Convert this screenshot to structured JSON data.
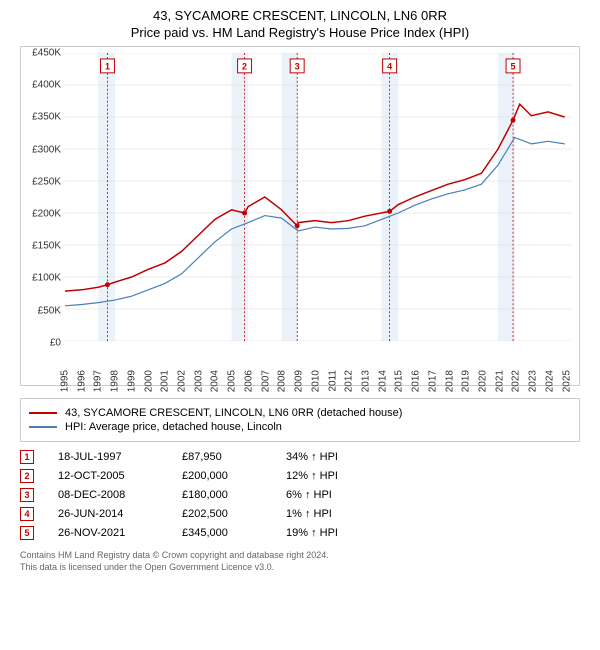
{
  "title_line1": "43, SYCAMORE CRESCENT, LINCOLN, LN6 0RR",
  "title_line2": "Price paid vs. HM Land Registry's House Price Index (HPI)",
  "chart": {
    "type": "line",
    "background_color": "#ffffff",
    "border_color": "#cccccc",
    "grid_color": "#d8d8d8",
    "shade_color": "#d7e6f4",
    "shade_opacity": 0.5,
    "xlim": [
      1995,
      2025.5
    ],
    "ylim": [
      0,
      450000
    ],
    "ytick_step": 50000,
    "ytick_prefix": "£",
    "ytick_suffix": "K",
    "x_ticks": [
      1995,
      1996,
      1997,
      1998,
      1999,
      2000,
      2001,
      2002,
      2003,
      2004,
      2005,
      2006,
      2007,
      2008,
      2009,
      2010,
      2011,
      2012,
      2013,
      2014,
      2015,
      2016,
      2017,
      2018,
      2019,
      2020,
      2021,
      2022,
      2023,
      2024,
      2025
    ],
    "shaded_years": [
      1997,
      2005,
      2008,
      2014,
      2021
    ],
    "series": [
      {
        "id": "property",
        "label": "43, SYCAMORE CRESCENT, LINCOLN, LN6 0RR (detached house)",
        "color": "#c00000",
        "width": 1.5,
        "data": [
          [
            1995,
            78000
          ],
          [
            1996,
            80000
          ],
          [
            1997,
            84000
          ],
          [
            1997.55,
            87950
          ],
          [
            1998,
            92000
          ],
          [
            1999,
            100000
          ],
          [
            2000,
            112000
          ],
          [
            2001,
            122000
          ],
          [
            2002,
            140000
          ],
          [
            2003,
            165000
          ],
          [
            2004,
            190000
          ],
          [
            2005,
            205000
          ],
          [
            2005.78,
            200000
          ],
          [
            2006,
            210000
          ],
          [
            2007,
            225000
          ],
          [
            2008,
            205000
          ],
          [
            2008.94,
            180000
          ],
          [
            2009,
            185000
          ],
          [
            2010,
            188000
          ],
          [
            2011,
            185000
          ],
          [
            2012,
            188000
          ],
          [
            2013,
            195000
          ],
          [
            2014.49,
            202500
          ],
          [
            2015,
            213000
          ],
          [
            2016,
            225000
          ],
          [
            2017,
            235000
          ],
          [
            2018,
            245000
          ],
          [
            2019,
            252000
          ],
          [
            2020,
            262000
          ],
          [
            2021,
            300000
          ],
          [
            2021.9,
            345000
          ],
          [
            2022.3,
            370000
          ],
          [
            2023,
            352000
          ],
          [
            2024,
            358000
          ],
          [
            2025,
            350000
          ]
        ]
      },
      {
        "id": "hpi",
        "label": "HPI: Average price, detached house, Lincoln",
        "color": "#4a7ebb",
        "width": 1.2,
        "data": [
          [
            1995,
            55000
          ],
          [
            1996,
            57000
          ],
          [
            1997,
            60000
          ],
          [
            1998,
            64000
          ],
          [
            1999,
            70000
          ],
          [
            2000,
            80000
          ],
          [
            2001,
            90000
          ],
          [
            2002,
            105000
          ],
          [
            2003,
            130000
          ],
          [
            2004,
            155000
          ],
          [
            2005,
            175000
          ],
          [
            2006,
            185000
          ],
          [
            2007,
            196000
          ],
          [
            2008,
            192000
          ],
          [
            2009,
            172000
          ],
          [
            2010,
            178000
          ],
          [
            2011,
            175000
          ],
          [
            2012,
            176000
          ],
          [
            2013,
            180000
          ],
          [
            2014,
            190000
          ],
          [
            2015,
            200000
          ],
          [
            2016,
            212000
          ],
          [
            2017,
            222000
          ],
          [
            2018,
            230000
          ],
          [
            2019,
            236000
          ],
          [
            2020,
            245000
          ],
          [
            2021,
            275000
          ],
          [
            2022,
            318000
          ],
          [
            2023,
            308000
          ],
          [
            2024,
            312000
          ],
          [
            2025,
            308000
          ]
        ]
      }
    ],
    "markers": [
      {
        "n": "1",
        "x": 1997.55,
        "y": 87950,
        "date": "18-JUL-1997",
        "price": "£87,950",
        "delta": "34% ↑ HPI"
      },
      {
        "n": "2",
        "x": 2005.78,
        "y": 200000,
        "date": "12-OCT-2005",
        "price": "£200,000",
        "delta": "12% ↑ HPI"
      },
      {
        "n": "3",
        "x": 2008.94,
        "y": 180000,
        "date": "08-DEC-2008",
        "price": "£180,000",
        "delta": "6% ↑ HPI"
      },
      {
        "n": "4",
        "x": 2014.49,
        "y": 202500,
        "date": "26-JUN-2014",
        "price": "£202,500",
        "delta": "1% ↑ HPI"
      },
      {
        "n": "5",
        "x": 2021.9,
        "y": 345000,
        "date": "26-NOV-2021",
        "price": "£345,000",
        "delta": "19% ↑ HPI"
      }
    ],
    "marker_dash_color": "#c00000",
    "marker_point_color": "#c00000"
  },
  "footer_line1": "Contains HM Land Registry data © Crown copyright and database right 2024.",
  "footer_line2": "This data is licensed under the Open Government Licence v3.0."
}
